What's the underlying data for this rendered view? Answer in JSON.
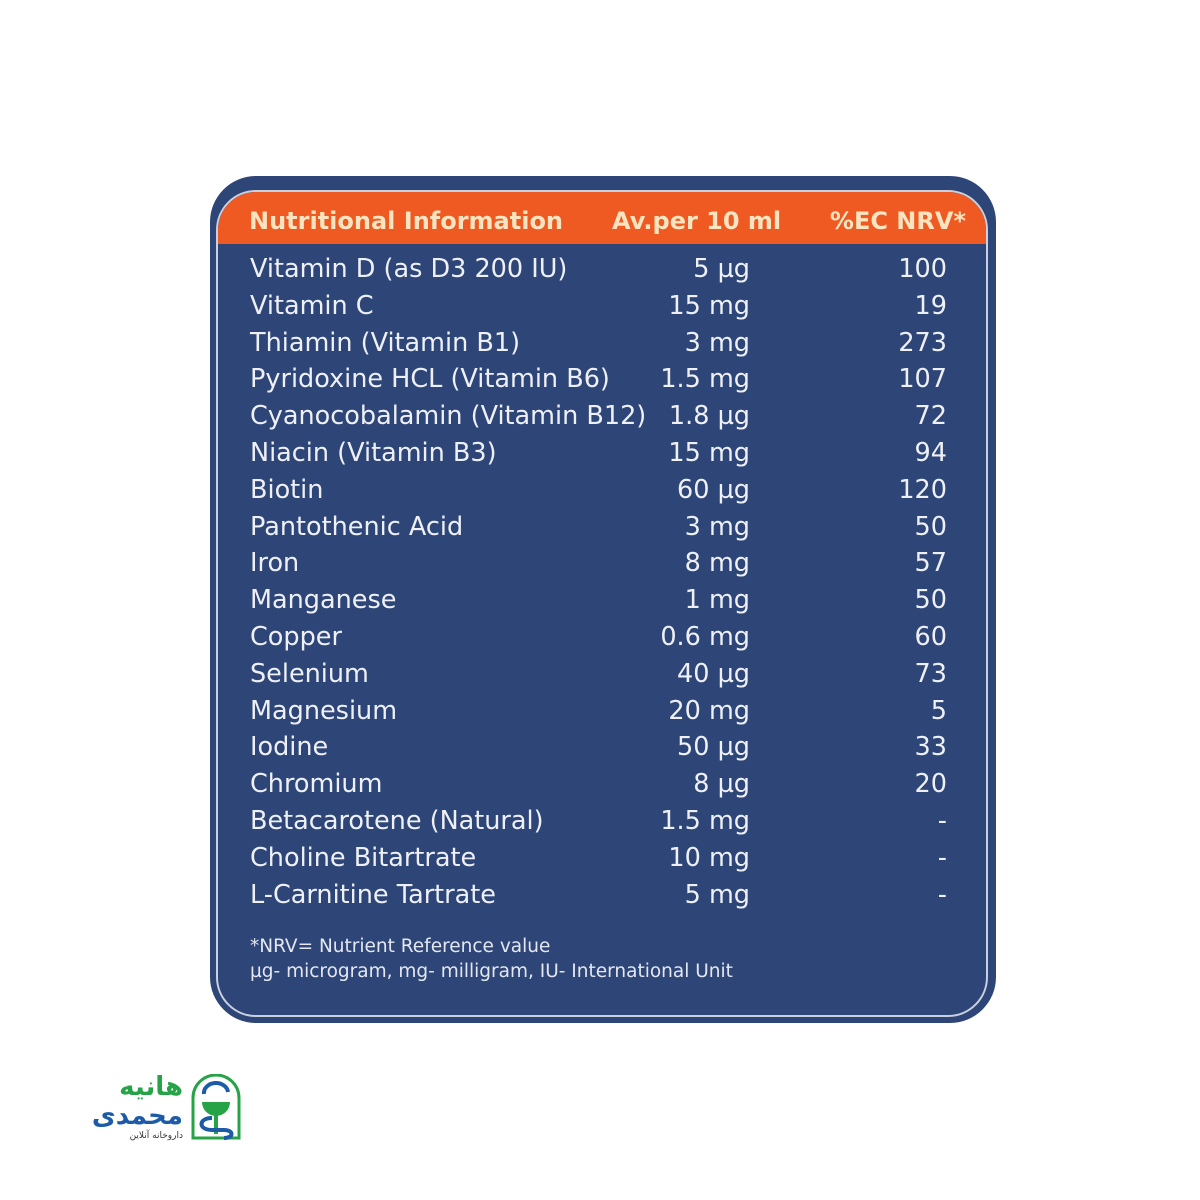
{
  "header": {
    "col_name": "Nutritional Information",
    "col_amount": "Av.per 10 ml",
    "col_nrv": "%EC NRV*"
  },
  "rows": [
    {
      "name": "Vitamin D (as D3 200 IU)",
      "amount": "5 µg",
      "nrv": "100"
    },
    {
      "name": "Vitamin C",
      "amount": "15 mg",
      "nrv": "19"
    },
    {
      "name": "Thiamin (Vitamin B1)",
      "amount": "3 mg",
      "nrv": "273"
    },
    {
      "name": "Pyridoxine HCL (Vitamin B6)",
      "amount": "1.5 mg",
      "nrv": "107"
    },
    {
      "name": "Cyanocobalamin (Vitamin B12)",
      "amount": "1.8 µg",
      "nrv": "72"
    },
    {
      "name": "Niacin (Vitamin B3)",
      "amount": "15 mg",
      "nrv": "94"
    },
    {
      "name": "Biotin",
      "amount": "60 µg",
      "nrv": "120"
    },
    {
      "name": "Pantothenic Acid",
      "amount": "3 mg",
      "nrv": "50"
    },
    {
      "name": "Iron",
      "amount": "8 mg",
      "nrv": "57"
    },
    {
      "name": "Manganese",
      "amount": "1 mg",
      "nrv": "50"
    },
    {
      "name": "Copper",
      "amount": "0.6 mg",
      "nrv": "60"
    },
    {
      "name": "Selenium",
      "amount": "40 µg",
      "nrv": "73"
    },
    {
      "name": "Magnesium",
      "amount": "20 mg",
      "nrv": "5"
    },
    {
      "name": "Iodine",
      "amount": "50 µg",
      "nrv": "33"
    },
    {
      "name": "Chromium",
      "amount": "8 µg",
      "nrv": "20"
    },
    {
      "name": "Betacarotene (Natural)",
      "amount": "1.5 mg",
      "nrv": "-"
    },
    {
      "name": "Choline Bitartrate",
      "amount": "10 mg",
      "nrv": "-"
    },
    {
      "name": "L-Carnitine Tartrate",
      "amount": "5 mg",
      "nrv": "-"
    }
  ],
  "footnotes": [
    "*NRV= Nutrient Reference value",
    "µg- microgram, mg- milligram, IU- International Unit"
  ],
  "logo": {
    "line1": "هانیه",
    "line2": "محمدی",
    "line3": "داروخانه آنلاین"
  },
  "colors": {
    "panel": "#2e4677",
    "header": "#ee5a22",
    "header_text": "#f8e4c0",
    "logo_green": "#27a347",
    "logo_blue": "#1d5ba8"
  }
}
